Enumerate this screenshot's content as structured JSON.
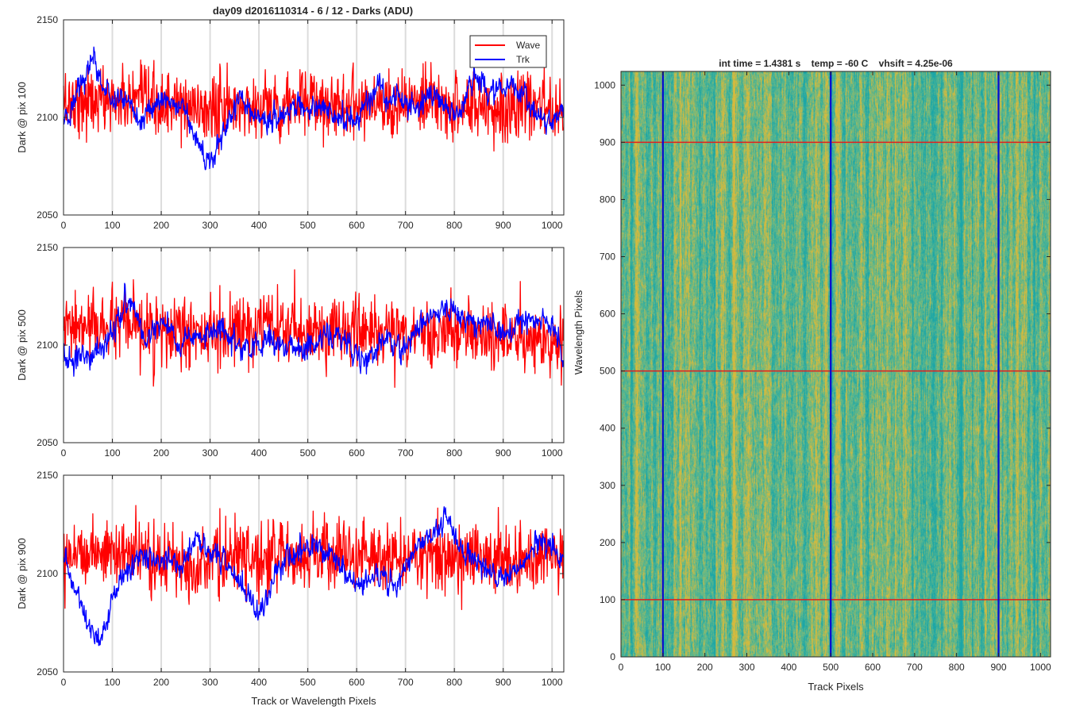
{
  "figure": {
    "title": "day09 d2016110314 - 6 / 12 - Darks (ADU)"
  },
  "legend": {
    "wave": "Wave",
    "trk": "Trk"
  },
  "colors": {
    "wave": "#ff0000",
    "trk": "#0000ff",
    "heat_low": "#1aa6a8",
    "heat_mid": "#5fb88c",
    "heat_high": "#d7ba3c",
    "marker_h": "#e11f1f",
    "marker_v": "#0a0ad0"
  },
  "chart_data": [
    {
      "type": "line",
      "ylabel": "Dark @ pix 100",
      "xlabel": "",
      "xlim": [
        0,
        1024
      ],
      "ylim": [
        2050,
        2150
      ],
      "xticks": [
        0,
        100,
        200,
        300,
        400,
        500,
        600,
        700,
        800,
        900,
        1000
      ],
      "yticks": [
        2050,
        2100,
        2150
      ],
      "vertical_grid": true,
      "legend_position": "top-right",
      "series": [
        {
          "name": "Wave",
          "color": "#ff0000",
          "kind": "noisy",
          "x": [
            0,
            100,
            200,
            300,
            400,
            500,
            600,
            700,
            800,
            900,
            1024
          ],
          "values": [
            2108,
            2109,
            2106,
            2104,
            2106,
            2107,
            2108,
            2107,
            2106,
            2105,
            2106
          ]
        },
        {
          "name": "Trk",
          "color": "#0000ff",
          "kind": "smooth",
          "x": [
            0,
            20,
            40,
            60,
            75,
            100,
            130,
            160,
            200,
            240,
            270,
            300,
            330,
            360,
            400,
            440,
            480,
            520,
            560,
            600,
            640,
            680,
            720,
            760,
            800,
            840,
            880,
            920,
            960,
            1000,
            1024
          ],
          "values": [
            2098,
            2105,
            2118,
            2132,
            2120,
            2108,
            2112,
            2096,
            2110,
            2106,
            2088,
            2078,
            2094,
            2112,
            2098,
            2100,
            2104,
            2106,
            2100,
            2098,
            2114,
            2110,
            2104,
            2112,
            2100,
            2120,
            2112,
            2118,
            2102,
            2096,
            2104
          ]
        }
      ]
    },
    {
      "type": "line",
      "ylabel": "Dark @ pix 500",
      "xlabel": "",
      "xlim": [
        0,
        1024
      ],
      "ylim": [
        2050,
        2150
      ],
      "xticks": [
        0,
        100,
        200,
        300,
        400,
        500,
        600,
        700,
        800,
        900,
        1000
      ],
      "yticks": [
        2050,
        2100,
        2150
      ],
      "vertical_grid": true,
      "series": [
        {
          "name": "Wave",
          "color": "#ff0000",
          "kind": "noisy",
          "x": [
            0,
            100,
            200,
            300,
            400,
            500,
            600,
            700,
            800,
            900,
            1024
          ],
          "values": [
            2108,
            2110,
            2106,
            2105,
            2108,
            2107,
            2108,
            2106,
            2107,
            2104,
            2100
          ]
        },
        {
          "name": "Trk",
          "color": "#0000ff",
          "kind": "smooth",
          "x": [
            0,
            20,
            50,
            80,
            110,
            140,
            170,
            200,
            240,
            280,
            320,
            350,
            380,
            420,
            460,
            500,
            540,
            580,
            620,
            660,
            700,
            740,
            780,
            820,
            860,
            900,
            940,
            980,
            1010,
            1024
          ],
          "values": [
            2096,
            2090,
            2094,
            2098,
            2112,
            2124,
            2100,
            2114,
            2100,
            2104,
            2108,
            2102,
            2096,
            2102,
            2100,
            2098,
            2106,
            2100,
            2090,
            2104,
            2098,
            2114,
            2118,
            2112,
            2110,
            2104,
            2114,
            2112,
            2106,
            2092
          ]
        }
      ]
    },
    {
      "type": "line",
      "ylabel": "Dark @ pix 900",
      "xlabel": "Track or Wavelength Pixels",
      "xlim": [
        0,
        1024
      ],
      "ylim": [
        2050,
        2150
      ],
      "xticks": [
        0,
        100,
        200,
        300,
        400,
        500,
        600,
        700,
        800,
        900,
        1000
      ],
      "yticks": [
        2050,
        2100,
        2150
      ],
      "vertical_grid": true,
      "series": [
        {
          "name": "Wave",
          "color": "#ff0000",
          "kind": "noisy",
          "x": [
            0,
            100,
            200,
            300,
            400,
            500,
            600,
            700,
            800,
            900,
            1024
          ],
          "values": [
            2112,
            2111,
            2106,
            2106,
            2108,
            2110,
            2109,
            2108,
            2110,
            2107,
            2108
          ]
        },
        {
          "name": "Trk",
          "color": "#0000ff",
          "kind": "smooth",
          "x": [
            0,
            15,
            30,
            50,
            70,
            90,
            110,
            140,
            170,
            200,
            240,
            270,
            300,
            330,
            360,
            400,
            440,
            480,
            520,
            560,
            600,
            640,
            680,
            720,
            760,
            790,
            820,
            860,
            900,
            940,
            980,
            1024
          ],
          "values": [
            2108,
            2096,
            2090,
            2074,
            2066,
            2076,
            2096,
            2104,
            2110,
            2108,
            2102,
            2120,
            2110,
            2108,
            2096,
            2080,
            2104,
            2110,
            2114,
            2106,
            2094,
            2098,
            2094,
            2112,
            2124,
            2128,
            2110,
            2104,
            2098,
            2106,
            2116,
            2108
          ]
        }
      ]
    },
    {
      "type": "heatmap",
      "title": "int time = 1.4381 s    temp = -60 C    vhsift = 4.25e-06",
      "xlabel": "Track Pixels",
      "ylabel": "Wavelength Pixels",
      "xlim": [
        0,
        1024
      ],
      "ylim": [
        0,
        1024
      ],
      "xticks": [
        0,
        100,
        200,
        300,
        400,
        500,
        600,
        700,
        800,
        900,
        1000
      ],
      "yticks": [
        0,
        100,
        200,
        300,
        400,
        500,
        600,
        700,
        800,
        900,
        1000
      ],
      "value_range": [
        2050,
        2150
      ],
      "mean_value": 2105,
      "marker_rows": [
        100,
        500,
        900
      ],
      "marker_cols": [
        100,
        500,
        900
      ]
    }
  ]
}
